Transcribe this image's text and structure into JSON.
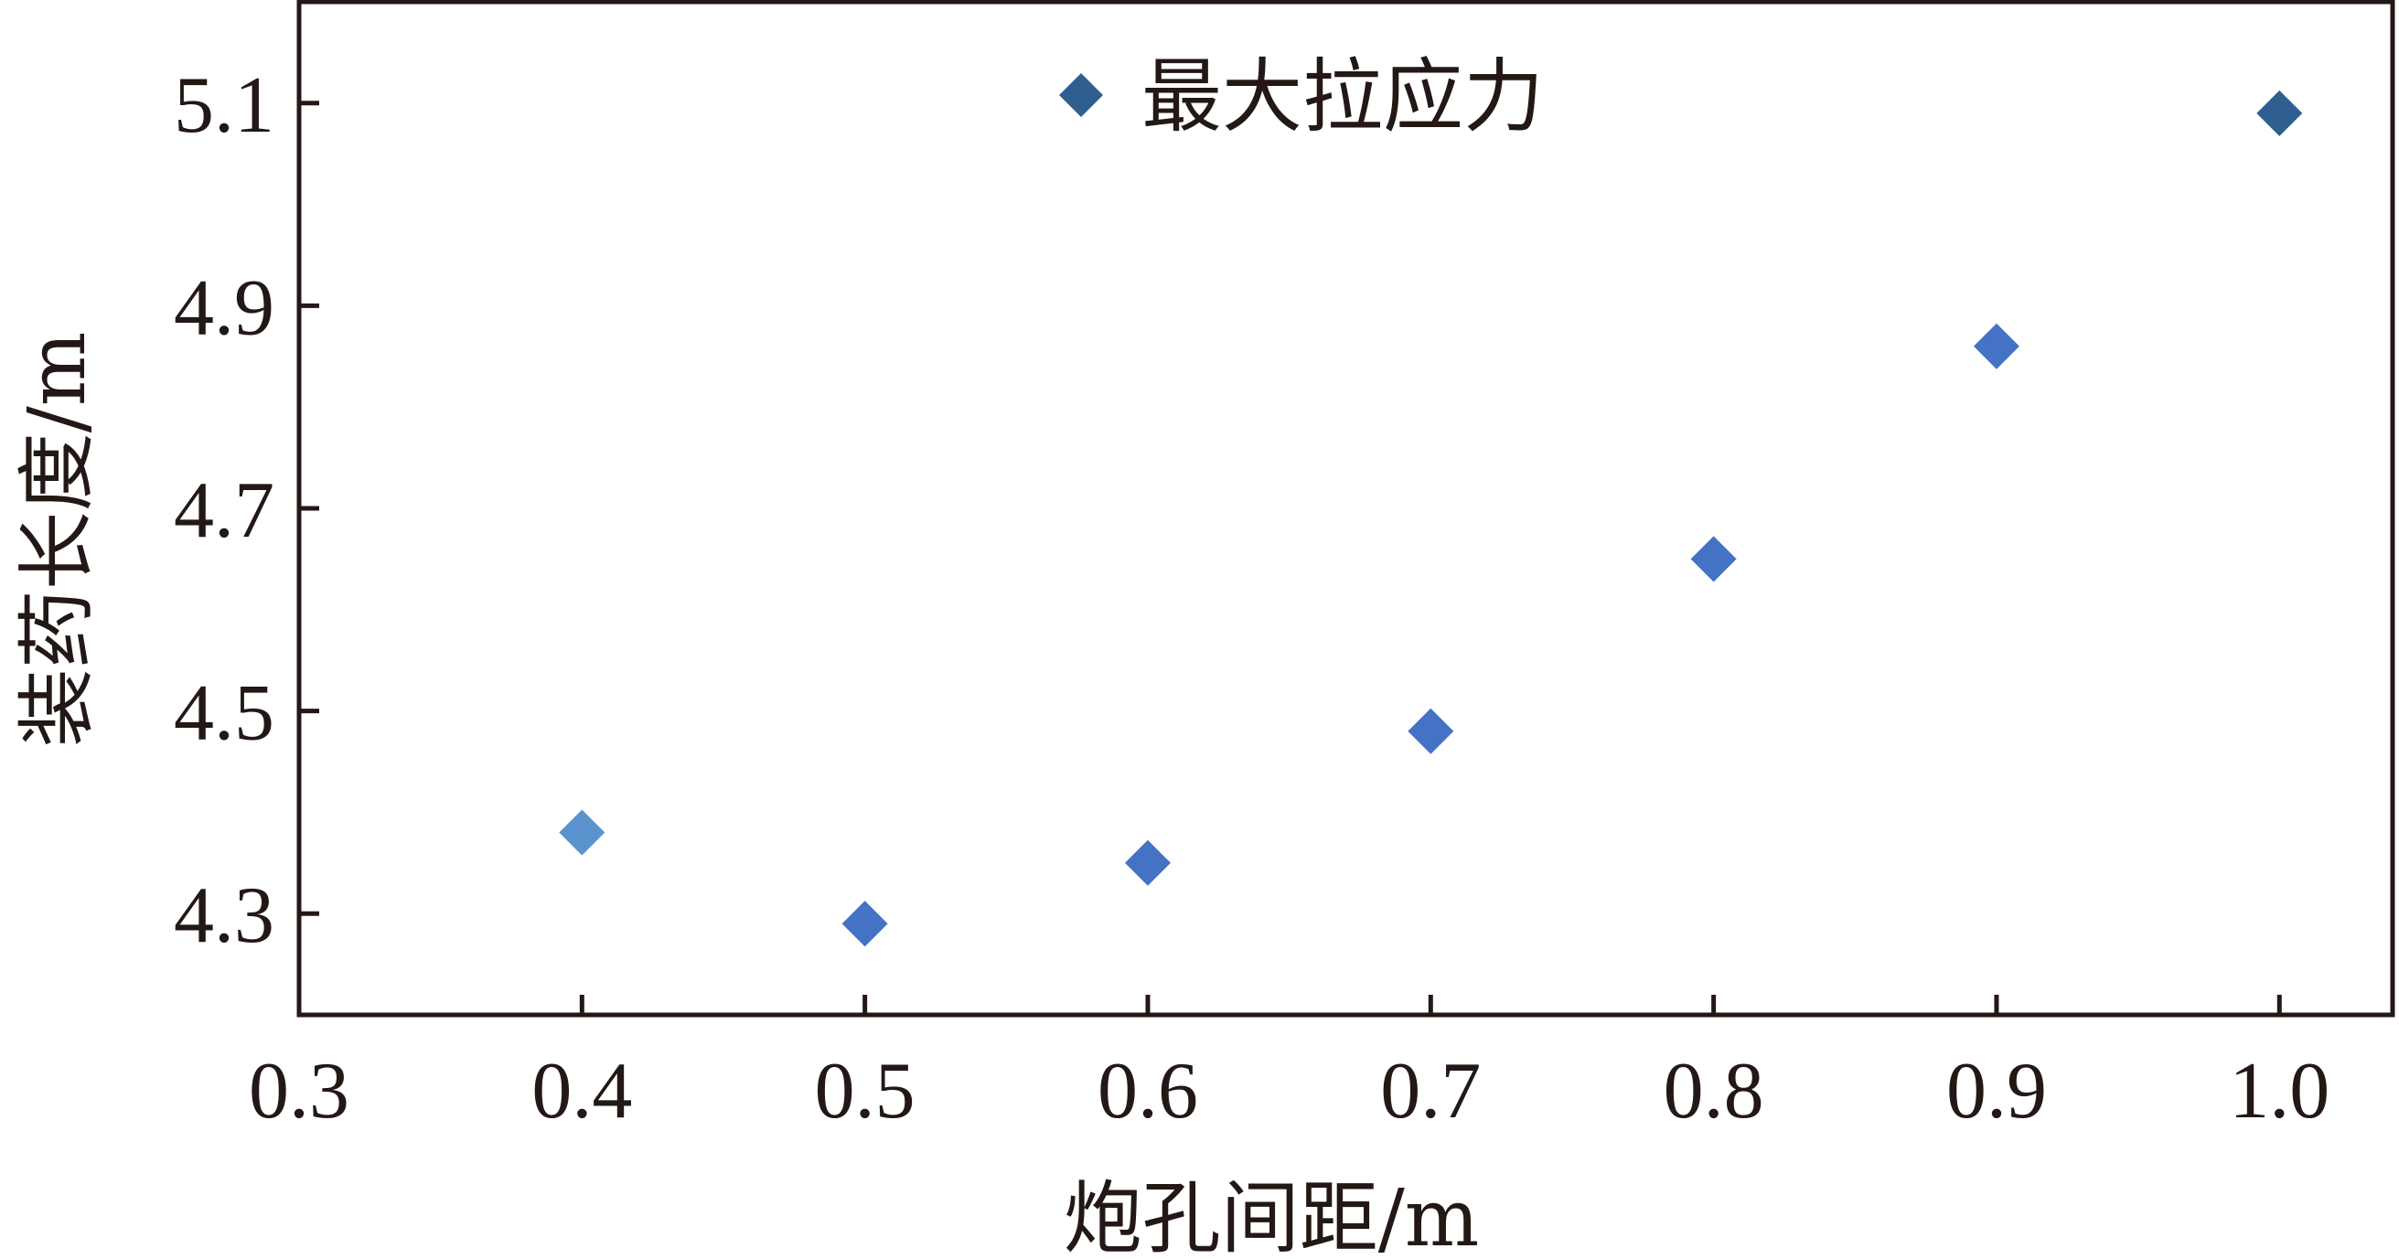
{
  "chart_data": {
    "type": "scatter",
    "xlabel": "炮孔间距/m",
    "ylabel": "装药长度/m",
    "xlim": [
      0.3,
      1.04
    ],
    "ylim": [
      4.2,
      5.2
    ],
    "xticks": [
      "0.3",
      "0.4",
      "0.5",
      "0.6",
      "0.7",
      "0.8",
      "0.9",
      "1.0"
    ],
    "yticks": [
      "4.3",
      "4.5",
      "4.7",
      "4.9",
      "5.1"
    ],
    "legend_position": "top-center",
    "grid": false,
    "series": [
      {
        "name": "最大拉应力",
        "marker": "diamond",
        "color": "#2f5f8f",
        "points": [
          {
            "x": 0.4,
            "y": 4.38,
            "color": "#5b93cf"
          },
          {
            "x": 0.5,
            "y": 4.29,
            "color": "#4472c4"
          },
          {
            "x": 0.6,
            "y": 4.35,
            "color": "#4472c4"
          },
          {
            "x": 0.7,
            "y": 4.48,
            "color": "#4472c4"
          },
          {
            "x": 0.8,
            "y": 4.65,
            "color": "#4472c4"
          },
          {
            "x": 0.9,
            "y": 4.86,
            "color": "#4472c4"
          },
          {
            "x": 1.0,
            "y": 5.09,
            "color": "#2f5f8f"
          }
        ]
      }
    ]
  }
}
